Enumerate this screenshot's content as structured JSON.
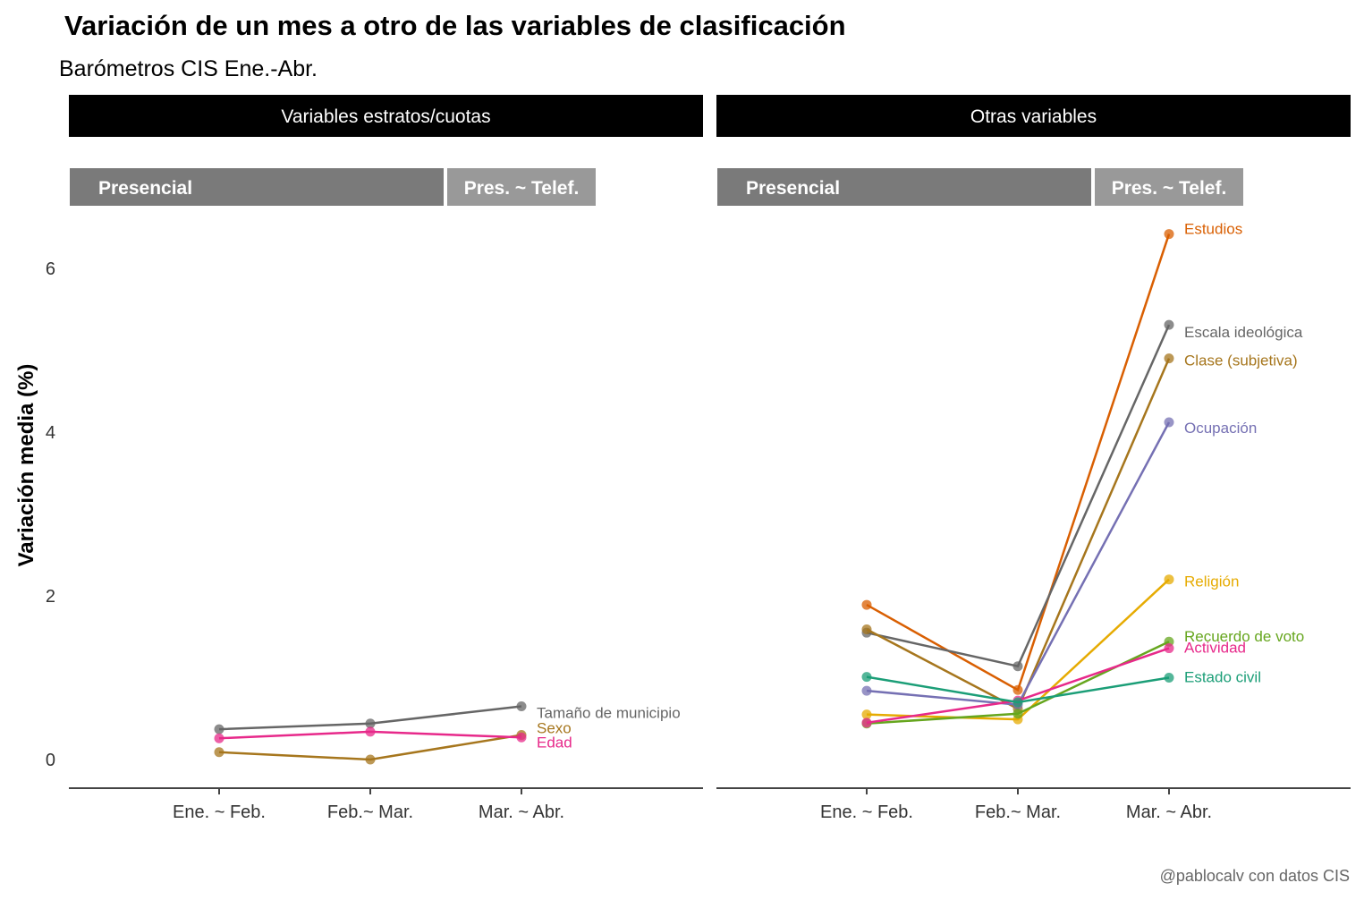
{
  "chart_data": {
    "type": "line",
    "title": "Variación de un mes a otro de las variables de clasificación",
    "subtitle": "Barómetros CIS Ene.-Abr.",
    "ylabel": "Variación media (%)",
    "caption": "@pablocalv con datos CIS",
    "categories": [
      "Ene. ~ Feb.",
      "Feb.~ Mar.",
      "Mar. ~ Abr."
    ],
    "y_ticks": [
      0,
      2,
      4,
      6
    ],
    "ylim": [
      -0.35,
      6.5
    ],
    "grid": false,
    "phases": {
      "presencial": "Presencial",
      "mixed": "Pres. ~ Telef."
    },
    "panels": [
      {
        "strip": "Variables estratos/cuotas",
        "series": [
          {
            "name": "Tamaño de municipio",
            "color": "#666666",
            "values": [
              0.37,
              0.44,
              0.65
            ]
          },
          {
            "name": "Sexo",
            "color": "#A6761D",
            "values": [
              0.09,
              0.0,
              0.3
            ]
          },
          {
            "name": "Edad",
            "color": "#E7298A",
            "values": [
              0.26,
              0.34,
              0.27
            ]
          }
        ]
      },
      {
        "strip": "Otras variables",
        "series": [
          {
            "name": "Estudios",
            "color": "#D95F02",
            "values": [
              1.89,
              0.85,
              6.42
            ]
          },
          {
            "name": "Escala ideológica",
            "color": "#666666",
            "values": [
              1.55,
              1.14,
              5.31
            ]
          },
          {
            "name": "Clase (subjetiva)",
            "color": "#A6761D",
            "values": [
              1.59,
              0.62,
              4.9
            ]
          },
          {
            "name": "Ocupación",
            "color": "#7570B3",
            "values": [
              0.84,
              0.67,
              4.12
            ]
          },
          {
            "name": "Religión",
            "color": "#E6AB02",
            "values": [
              0.55,
              0.49,
              2.2
            ]
          },
          {
            "name": "Recuerdo de voto",
            "color": "#66A61E",
            "values": [
              0.44,
              0.56,
              1.44
            ]
          },
          {
            "name": "Actividad",
            "color": "#E7298A",
            "values": [
              0.45,
              0.72,
              1.36
            ]
          },
          {
            "name": "Estado civil",
            "color": "#1B9E77",
            "values": [
              1.01,
              0.7,
              1.0
            ]
          }
        ]
      }
    ]
  }
}
